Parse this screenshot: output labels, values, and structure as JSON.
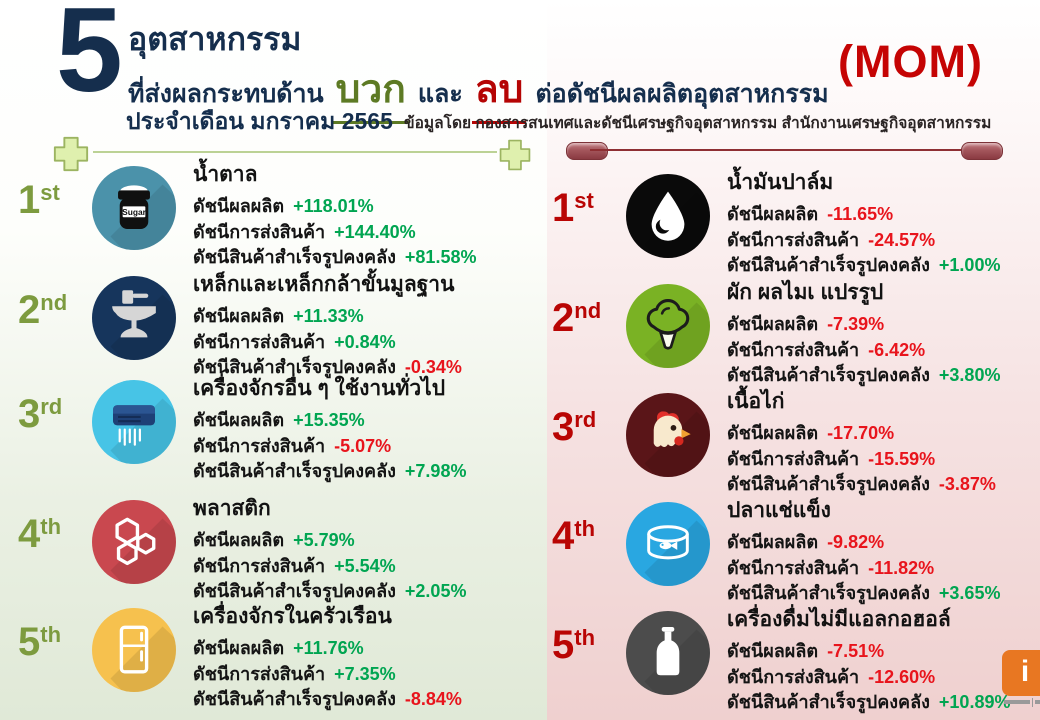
{
  "header": {
    "big_number": "5",
    "title_line1": "อุตสาหกรรม",
    "title_line2_pre": "ที่ส่งผลกระทบด้าน",
    "positive_word": "บวก",
    "and_word": "และ",
    "negative_word": "ลบ",
    "title_line2_post": "ต่อดัชนีผลผลิตอุตสาหกรรม",
    "period_line": "ประจำเดือน มกราคม 2565",
    "source_line": "ข้อมูลโดย กองสารสนเทศและดัชนีเศรษฐกิจอุตสาหกรรม  สำนักงานเศรษฐกิจอุตสาหกรรม",
    "mom_label": "(MOM)"
  },
  "colors": {
    "title_navy": "#152e4d",
    "positive_word": "#5d7a24",
    "negative_word": "#b50404",
    "mom_red": "#c50404",
    "positive_value": "#00a551",
    "negative_value": "#e8141c",
    "positive_ordinal": "#7d9b3f",
    "negative_ordinal": "#b90504"
  },
  "metric_labels": [
    "ดัชนีผลผลิต",
    "ดัชนีการส่งสินค้า",
    "ดัชนีสินค้าสำเร็จรูปคงคลัง"
  ],
  "columns": [
    {
      "id": "positive",
      "items": [
        {
          "rank": "1",
          "suffix": "st",
          "title": "น้ำตาล",
          "icon": "sugar-jar-icon",
          "icon_bg": "#4b92aa",
          "icon_text": "Sugar",
          "values": [
            "+118.01%",
            "+144.40%",
            "+81.58%"
          ]
        },
        {
          "rank": "2",
          "suffix": "nd",
          "title": "เหล็กและเหล็กกล้าขั้นมูลฐาน",
          "icon": "anvil-icon",
          "icon_bg": "#16355c",
          "values": [
            "+11.33%",
            "+0.84%",
            "-0.34%"
          ]
        },
        {
          "rank": "3",
          "suffix": "rd",
          "title": "เครื่องจักรอื่น ๆ ใช้งานทั่วไป",
          "icon": "air-conditioner-icon",
          "icon_bg": "#47c4e6",
          "values": [
            "+15.35%",
            "-5.07%",
            "+7.98%"
          ]
        },
        {
          "rank": "4",
          "suffix": "th",
          "title": "พลาสติก",
          "icon": "hexagons-icon",
          "icon_bg": "#c9484f",
          "values": [
            "+5.79%",
            "+5.54%",
            "+2.05%"
          ]
        },
        {
          "rank": "5",
          "suffix": "th",
          "title": "เครื่องจักรในครัวเรือน",
          "icon": "refrigerator-icon",
          "icon_bg": "#f6c14e",
          "values": [
            "+11.76%",
            "+7.35%",
            "-8.84%"
          ]
        }
      ]
    },
    {
      "id": "negative",
      "items": [
        {
          "rank": "1",
          "suffix": "st",
          "title": "น้ำมันปาล์ม",
          "icon": "oil-drop-icon",
          "icon_bg": "#0a0a0a",
          "values": [
            "-11.65%",
            "-24.57%",
            "+1.00%"
          ]
        },
        {
          "rank": "2",
          "suffix": "nd",
          "title": "ผัก ผลไมเ แปรรูป",
          "icon": "broccoli-icon",
          "icon_bg": "#7ab224",
          "values": [
            "-7.39%",
            "-6.42%",
            "+3.80%"
          ]
        },
        {
          "rank": "3",
          "suffix": "rd",
          "title": "เนื้อไก่",
          "icon": "chicken-icon",
          "icon_bg": "#5a1518",
          "values": [
            "-17.70%",
            "-15.59%",
            "-3.87%"
          ]
        },
        {
          "rank": "4",
          "suffix": "th",
          "title": "ปลาแช่แข็ง",
          "icon": "fish-can-icon",
          "icon_bg": "#29a7e1",
          "values": [
            "-9.82%",
            "-11.82%",
            "+3.65%"
          ]
        },
        {
          "rank": "5",
          "suffix": "th",
          "title": "เครื่องดื่มไม่มีแอลกอฮอล์",
          "icon": "bottle-icon",
          "icon_bg": "#4c4c4c",
          "values": [
            "-7.51%",
            "-12.60%",
            "+10.89%"
          ]
        }
      ]
    }
  ],
  "logo": {
    "mark_text": "i"
  }
}
